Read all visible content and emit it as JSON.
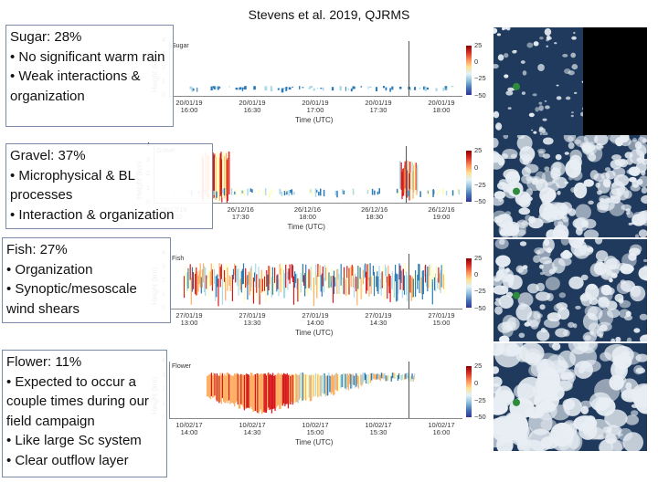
{
  "citation": "Stevens et al. 2019, QJRMS",
  "boxes": [
    {
      "title": "Sugar: 28%",
      "lines": [
        "•   No significant warm rain",
        "•   Weak interactions & organization"
      ]
    },
    {
      "title": "Gravel: 37%",
      "lines": [
        "•   Microphysical & BL processes",
        "•   Interaction & organization"
      ]
    },
    {
      "title": "Fish: 27%",
      "lines": [
        "•   Organization",
        "•   Synoptic/mesoscale wind shears"
      ]
    },
    {
      "title": "Flower: 11%",
      "lines": [
        "•   Expected to occur a couple times during our field campaign",
        "•   Like large Sc system",
        "•   Clear outflow layer"
      ]
    }
  ],
  "panels": [
    {
      "name": "Sugar",
      "ticks": [
        "20/01/19\n16:00",
        "20/01/19\n16:30",
        "20/01/19\n17:00",
        "20/01/19\n17:30",
        "20/01/19\n18:00"
      ]
    },
    {
      "name": "Gravel",
      "ticks": [
        "26/12/16\n17:00",
        "26/12/16\n17:30",
        "26/12/16\n18:00",
        "26/12/16\n18:30",
        "26/12/16\n19:00"
      ]
    },
    {
      "name": "Fish",
      "ticks": [
        "27/01/19\n13:00",
        "27/01/19\n13:30",
        "27/01/19\n14:00",
        "27/01/19\n14:30",
        "27/01/19\n15:00"
      ]
    },
    {
      "name": "Flower",
      "ticks": [
        "10/02/17\n14:00",
        "10/02/17\n14:30",
        "10/02/17\n15:00",
        "10/02/17\n15:30",
        "10/02/17\n16:00"
      ]
    }
  ],
  "axis": {
    "ylabel": "Height (km)",
    "xlabel": "Time (UTC)",
    "yticks": [
      "4",
      "3",
      "2",
      "1",
      "0"
    ]
  },
  "colorbar_ticks": [
    "25",
    "0",
    "−25",
    "−50"
  ],
  "colors": {
    "box_border": "#7a8aa8",
    "ocean": "#1f3a5c",
    "cloud": "#e8eef4",
    "marker": "#2e8b3a"
  }
}
